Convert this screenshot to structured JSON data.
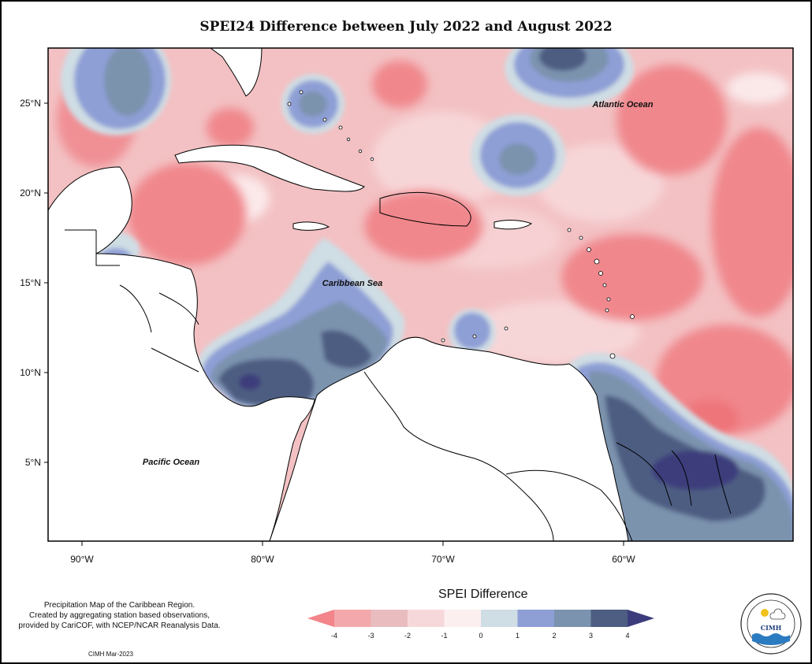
{
  "title": "SPEI24 Difference between July 2022 and August 2022",
  "map": {
    "latitude_ticks": [
      "25°N",
      "20°N",
      "15°N",
      "10°N",
      "5°N"
    ],
    "longitude_ticks": [
      "90°W",
      "80°W",
      "70°W",
      "60°W"
    ],
    "ocean_labels": {
      "atlantic": "Atlantic Ocean",
      "caribbean": "Caribbean Sea",
      "pacific": "Pacific Ocean"
    }
  },
  "legend": {
    "title": "SPEI Difference",
    "tick_labels": [
      "-4",
      "-3",
      "-2",
      "-1",
      "0",
      "1",
      "2",
      "3",
      "4"
    ],
    "colors": [
      "#f2848a",
      "#f3a9ac",
      "#e9bdbf",
      "#f6d8da",
      "#fcefef",
      "#cfdde4",
      "#8e9fd6",
      "#7b93ae",
      "#4e5d82",
      "#3c3c7c"
    ]
  },
  "credits": {
    "line1": "Precipitation Map of the Caribbean Region.",
    "line2": "Created by aggregating station based observations,",
    "line3": "provided by CariCOF, with NCEP/NCAR Reanalysis Data.",
    "issued": "CIMH Mar-2023"
  },
  "logo": {
    "name": "CIMH"
  }
}
